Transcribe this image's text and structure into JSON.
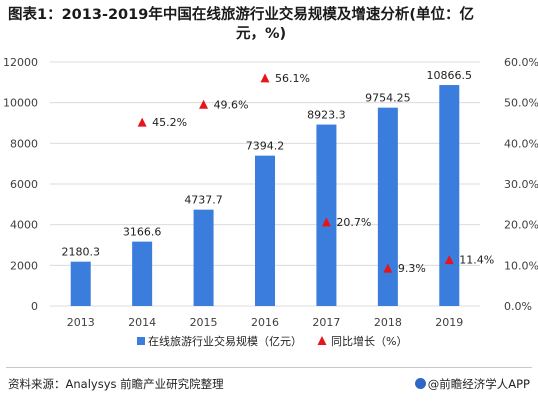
{
  "title": {
    "line1": "图表1：2013-2019年中国在线旅游行业交易规模及增速分析(单位：亿",
    "line2": "元，%)"
  },
  "footer": {
    "source": "资料来源：Analysys 前瞻产业研究院整理",
    "brand": "@前瞻经济学人APP"
  },
  "colors": {
    "bar": "#3b7ddd",
    "marker": "#e8141c",
    "grid": "#dcdcdc",
    "axis_text": "#404040"
  },
  "chart_data": {
    "type": "bar",
    "categories": [
      "2013",
      "2014",
      "2015",
      "2016",
      "2017",
      "2018",
      "2019"
    ],
    "series": [
      {
        "name": "在线旅游行业交易规模（亿元）",
        "type": "bar",
        "axis": "left",
        "values": [
          2180.3,
          3166.6,
          4737.7,
          7394.2,
          8923.3,
          9754.25,
          10866.5
        ],
        "labels": [
          "2180.3",
          "3166.6",
          "4737.7",
          "7394.2",
          "8923.3",
          "9754.25",
          "10866.5"
        ]
      },
      {
        "name": "同比增长（%）",
        "type": "scatter",
        "marker": "triangle",
        "axis": "right",
        "values": [
          null,
          45.2,
          49.6,
          56.1,
          20.7,
          9.3,
          11.4
        ],
        "labels": [
          null,
          "45.2%",
          "49.6%",
          "56.1%",
          "20.7%",
          "9.3%",
          "11.4%"
        ]
      }
    ],
    "y_left": {
      "ylim": [
        0,
        12000
      ],
      "ticks": [
        "0",
        "2000",
        "4000",
        "6000",
        "8000",
        "10000",
        "12000"
      ]
    },
    "y_right": {
      "ylim": [
        0,
        60
      ],
      "ticks": [
        "0.0%",
        "10.0%",
        "20.0%",
        "30.0%",
        "40.0%",
        "50.0%",
        "60.0%"
      ]
    },
    "grid": true,
    "legend": "bottom"
  }
}
